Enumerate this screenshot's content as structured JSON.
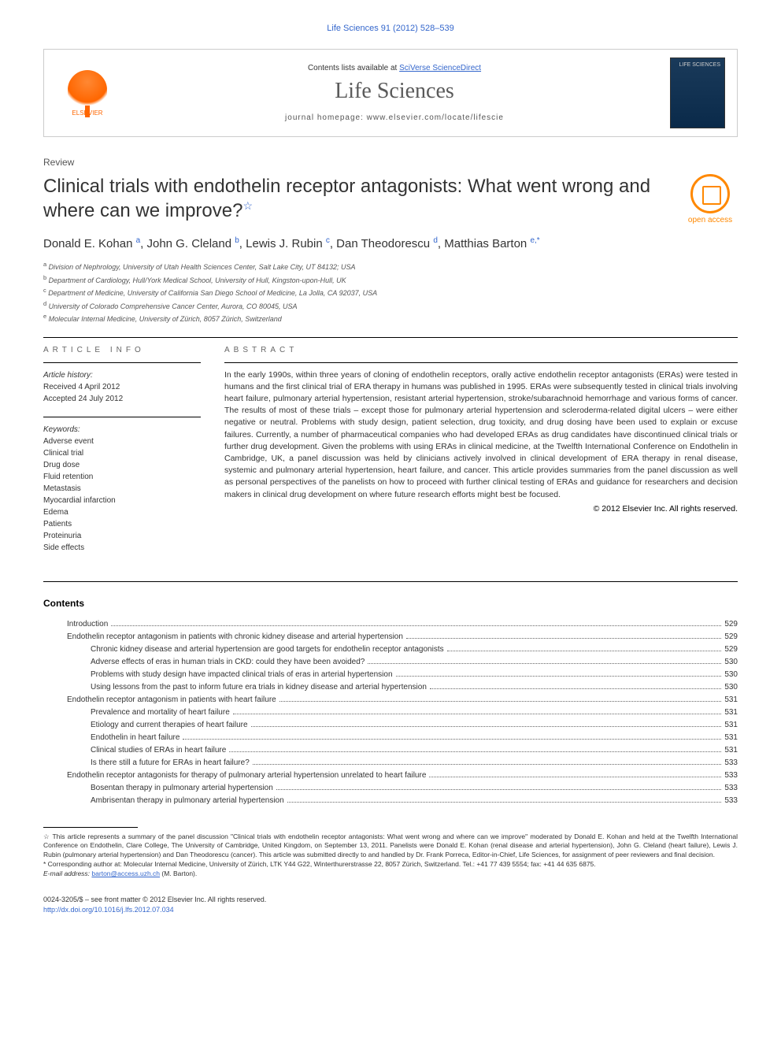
{
  "journal_ref": "Life Sciences 91 (2012) 528–539",
  "header": {
    "publisher_name": "ELSEVIER",
    "contents_prefix": "Contents lists available at ",
    "contents_link": "SciVerse ScienceDirect",
    "journal_name": "Life Sciences",
    "homepage_prefix": "journal homepage: ",
    "homepage_url": "www.elsevier.com/locate/lifescie",
    "cover_label": "LIFE SCIENCES"
  },
  "article_type": "Review",
  "title": "Clinical trials with endothelin receptor antagonists: What went wrong and where can we improve?",
  "title_star": "☆",
  "oa_label": "open access",
  "authors_html": "Donald E. Kohan <sup>a</sup>, John G. Cleland <sup>b</sup>, Lewis J. Rubin <sup>c</sup>, Dan Theodorescu <sup>d</sup>, Matthias Barton <sup>e,*</sup>",
  "affiliations": [
    {
      "sup": "a",
      "text": "Division of Nephrology, University of Utah Health Sciences Center, Salt Lake City, UT 84132; USA"
    },
    {
      "sup": "b",
      "text": "Department of Cardiology, Hull/York Medical School, University of Hull, Kingston-upon-Hull, UK"
    },
    {
      "sup": "c",
      "text": "Department of Medicine, University of California San Diego School of Medicine, La Jolla, CA 92037, USA"
    },
    {
      "sup": "d",
      "text": "University of Colorado Comprehensive Cancer Center, Aurora, CO 80045, USA"
    },
    {
      "sup": "e",
      "text": "Molecular Internal Medicine, University of Zürich, 8057 Zürich, Switzerland"
    }
  ],
  "info_label": "ARTICLE INFO",
  "abstract_label": "ABSTRACT",
  "history_label": "Article history:",
  "received": "Received 4 April 2012",
  "accepted": "Accepted 24 July 2012",
  "keywords_label": "Keywords:",
  "keywords": [
    "Adverse event",
    "Clinical trial",
    "Drug dose",
    "Fluid retention",
    "Metastasis",
    "Myocardial infarction",
    "Edema",
    "Patients",
    "Proteinuria",
    "Side effects"
  ],
  "abstract_text": "In the early 1990s, within three years of cloning of endothelin receptors, orally active endothelin receptor antagonists (ERAs) were tested in humans and the first clinical trial of ERA therapy in humans was published in 1995. ERAs were subsequently tested in clinical trials involving heart failure, pulmonary arterial hypertension, resistant arterial hypertension, stroke/subarachnoid hemorrhage and various forms of cancer. The results of most of these trials – except those for pulmonary arterial hypertension and scleroderma-related digital ulcers – were either negative or neutral. Problems with study design, patient selection, drug toxicity, and drug dosing have been used to explain or excuse failures. Currently, a number of pharmaceutical companies who had developed ERAs as drug candidates have discontinued clinical trials or further drug development. Given the problems with using ERAs in clinical medicine, at the Twelfth International Conference on Endothelin in Cambridge, UK, a panel discussion was held by clinicians actively involved in clinical development of ERA therapy in renal disease, systemic and pulmonary arterial hypertension, heart failure, and cancer. This article provides summaries from the panel discussion as well as personal perspectives of the panelists on how to proceed with further clinical testing of ERAs and guidance for researchers and decision makers in clinical drug development on where future research efforts might best be focused.",
  "copyright": "© 2012 Elsevier Inc. All rights reserved.",
  "contents_heading": "Contents",
  "toc": [
    {
      "indent": 1,
      "title": "Introduction",
      "page": "529"
    },
    {
      "indent": 1,
      "title": "Endothelin receptor antagonism in patients with chronic kidney disease and arterial hypertension",
      "page": "529"
    },
    {
      "indent": 2,
      "title": "Chronic kidney disease and arterial hypertension are good targets for endothelin receptor antagonists",
      "page": "529"
    },
    {
      "indent": 2,
      "title": "Adverse effects of eras in human trials in CKD: could they have been avoided?",
      "page": "530"
    },
    {
      "indent": 2,
      "title": "Problems with study design have impacted clinical trials of eras in arterial hypertension",
      "page": "530"
    },
    {
      "indent": 2,
      "title": "Using lessons from the past to inform future era trials in kidney disease and arterial hypertension",
      "page": "530"
    },
    {
      "indent": 1,
      "title": "Endothelin receptor antagonism in patients with heart failure",
      "page": "531"
    },
    {
      "indent": 2,
      "title": "Prevalence and mortality of heart failure",
      "page": "531"
    },
    {
      "indent": 2,
      "title": "Etiology and current therapies of heart failure",
      "page": "531"
    },
    {
      "indent": 2,
      "title": "Endothelin in heart failure",
      "page": "531"
    },
    {
      "indent": 2,
      "title": "Clinical studies of ERAs in heart failure",
      "page": "531"
    },
    {
      "indent": 2,
      "title": "Is there still a future for ERAs in heart failure?",
      "page": "533"
    },
    {
      "indent": 1,
      "title": "Endothelin receptor antagonists for therapy of pulmonary arterial hypertension unrelated to heart failure",
      "page": "533"
    },
    {
      "indent": 2,
      "title": "Bosentan therapy in pulmonary arterial hypertension",
      "page": "533"
    },
    {
      "indent": 2,
      "title": "Ambrisentan therapy in pulmonary arterial hypertension",
      "page": "533"
    }
  ],
  "footnote_star": "☆  This article represents a summary of the panel discussion \"Clinical trials with endothelin receptor antagonists: What went wrong and where can we improve\" moderated by Donald E. Kohan and held at the Twelfth International Conference on Endothelin, Clare College, The University of Cambridge, United Kingdom, on September 13, 2011. Panelists were Donald E. Kohan (renal disease and arterial hypertension), John G. Cleland (heart failure), Lewis J. Rubin (pulmonary arterial hypertension) and Dan Theodorescu (cancer). This article was submitted directly to and handled by Dr. Frank Porreca, Editor-in-Chief, Life Sciences, for assignment of peer reviewers and final decision.",
  "footnote_corr": "* Corresponding author at: Molecular Internal Medicine, University of Zürich, LTK Y44 G22, Winterthurerstrasse 22, 8057 Zürich, Switzerland. Tel.: +41 77 439 5554; fax: +41 44 635 6875.",
  "email_label": "E-mail address: ",
  "email": "barton@access.uzh.ch",
  "email_suffix": " (M. Barton).",
  "issn_line": "0024-3205/$ – see front matter © 2012 Elsevier Inc. All rights reserved.",
  "doi": "http://dx.doi.org/10.1016/j.lfs.2012.07.034",
  "colors": {
    "link": "#3366cc",
    "elsevier": "#ff6600",
    "oa": "#ff8800",
    "text": "#333333"
  }
}
